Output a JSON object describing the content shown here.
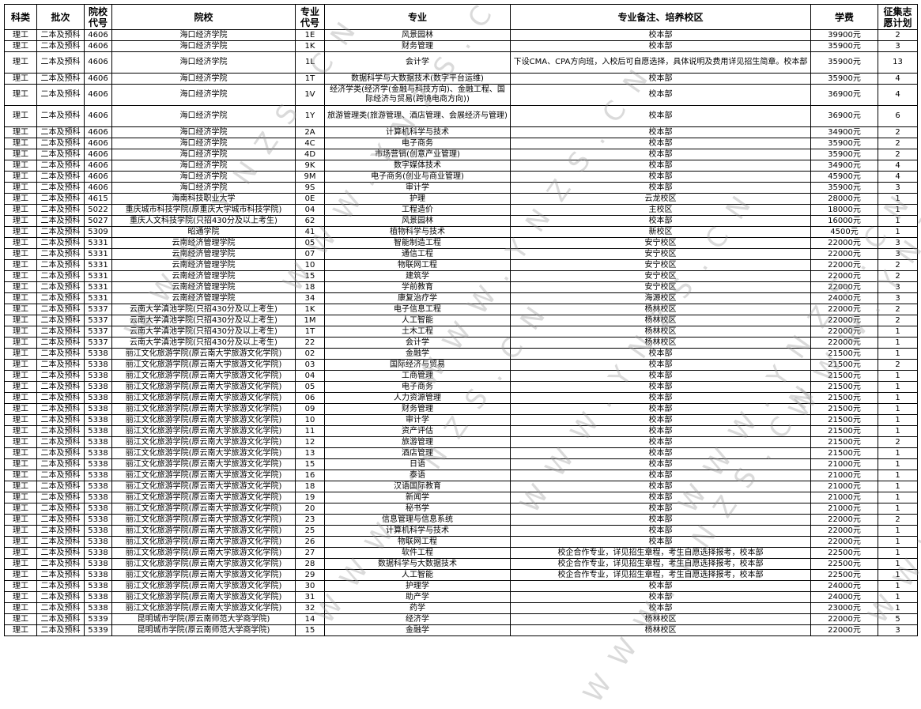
{
  "watermark": "WWW.YNZS.CN",
  "headers": [
    "科类",
    "批次",
    "院校代号",
    "院校",
    "专业代号",
    "专业",
    "专业备注、培养校区",
    "学费",
    "征集志愿计划"
  ],
  "rows": [
    [
      "理工",
      "二本及预科",
      "4606",
      "海口经济学院",
      "1E",
      "风景园林",
      "校本部",
      "39900元",
      "2"
    ],
    [
      "理工",
      "二本及预科",
      "4606",
      "海口经济学院",
      "1K",
      "财务管理",
      "校本部",
      "35900元",
      "3"
    ],
    [
      "理工",
      "二本及预科",
      "4606",
      "海口经济学院",
      "1L",
      "会计学",
      "下设CMA、CPA方向班，入校后可自愿选择，具体说明及费用详见招生简章。校本部",
      "35900元",
      "13"
    ],
    [
      "理工",
      "二本及预科",
      "4606",
      "海口经济学院",
      "1T",
      "数据科学与大数据技术(数字平台运维)",
      "校本部",
      "35900元",
      "4"
    ],
    [
      "理工",
      "二本及预科",
      "4606",
      "海口经济学院",
      "1V",
      "经济学类(经济学(金融与科技方向)、金融工程、国际经济与贸易(跨境电商方向))",
      "校本部",
      "36900元",
      "4"
    ],
    [
      "理工",
      "二本及预科",
      "4606",
      "海口经济学院",
      "1Y",
      "旅游管理类(旅游管理、酒店管理、会展经济与管理)",
      "校本部",
      "36900元",
      "6"
    ],
    [
      "理工",
      "二本及预科",
      "4606",
      "海口经济学院",
      "2A",
      "计算机科学与技术",
      "校本部",
      "34900元",
      "2"
    ],
    [
      "理工",
      "二本及预科",
      "4606",
      "海口经济学院",
      "4C",
      "电子商务",
      "校本部",
      "35900元",
      "2"
    ],
    [
      "理工",
      "二本及预科",
      "4606",
      "海口经济学院",
      "4D",
      "市场营销(创意产业管理)",
      "校本部",
      "35900元",
      "2"
    ],
    [
      "理工",
      "二本及预科",
      "4606",
      "海口经济学院",
      "9K",
      "数字媒体技术",
      "校本部",
      "34900元",
      "4"
    ],
    [
      "理工",
      "二本及预科",
      "4606",
      "海口经济学院",
      "9M",
      "电子商务(创业与商业管理)",
      "校本部",
      "45900元",
      "4"
    ],
    [
      "理工",
      "二本及预科",
      "4606",
      "海口经济学院",
      "9S",
      "审计学",
      "校本部",
      "35900元",
      "3"
    ],
    [
      "理工",
      "二本及预科",
      "4615",
      "海南科技职业大学",
      "0E",
      "护理",
      "云龙校区",
      "28000元",
      "1"
    ],
    [
      "理工",
      "二本及预科",
      "5022",
      "重庆城市科技学院(原重庆大学城市科技学院)",
      "04",
      "工程造价",
      "主校区",
      "18000元",
      "1"
    ],
    [
      "理工",
      "二本及预科",
      "5027",
      "重庆人文科技学院(只招430分及以上考生)",
      "62",
      "风景园林",
      "校本部",
      "16000元",
      "1"
    ],
    [
      "理工",
      "二本及预科",
      "5309",
      "昭通学院",
      "41",
      "植物科学与技术",
      "新校区",
      "4500元",
      "1"
    ],
    [
      "理工",
      "二本及预科",
      "5331",
      "云南经济管理学院",
      "05",
      "智能制造工程",
      "安宁校区",
      "22000元",
      "3"
    ],
    [
      "理工",
      "二本及预科",
      "5331",
      "云南经济管理学院",
      "07",
      "通信工程",
      "安宁校区",
      "22000元",
      "3"
    ],
    [
      "理工",
      "二本及预科",
      "5331",
      "云南经济管理学院",
      "10",
      "物联网工程",
      "安宁校区",
      "22000元",
      "2"
    ],
    [
      "理工",
      "二本及预科",
      "5331",
      "云南经济管理学院",
      "15",
      "建筑学",
      "安宁校区",
      "22000元",
      "2"
    ],
    [
      "理工",
      "二本及预科",
      "5331",
      "云南经济管理学院",
      "18",
      "学前教育",
      "安宁校区",
      "22000元",
      "3"
    ],
    [
      "理工",
      "二本及预科",
      "5331",
      "云南经济管理学院",
      "34",
      "康复治疗学",
      "海源校区",
      "24000元",
      "3"
    ],
    [
      "理工",
      "二本及预科",
      "5337",
      "云南大学滇池学院(只招430分及以上考生)",
      "1K",
      "电子信息工程",
      "杨林校区",
      "22000元",
      "2"
    ],
    [
      "理工",
      "二本及预科",
      "5337",
      "云南大学滇池学院(只招430分及以上考生)",
      "1M",
      "人工智能",
      "杨林校区",
      "22000元",
      "2"
    ],
    [
      "理工",
      "二本及预科",
      "5337",
      "云南大学滇池学院(只招430分及以上考生)",
      "1T",
      "土木工程",
      "杨林校区",
      "22000元",
      "1"
    ],
    [
      "理工",
      "二本及预科",
      "5337",
      "云南大学滇池学院(只招430分及以上考生)",
      "22",
      "会计学",
      "杨林校区",
      "22000元",
      "1"
    ],
    [
      "理工",
      "二本及预科",
      "5338",
      "丽江文化旅游学院(原云南大学旅游文化学院)",
      "02",
      "金融学",
      "校本部",
      "21500元",
      "1"
    ],
    [
      "理工",
      "二本及预科",
      "5338",
      "丽江文化旅游学院(原云南大学旅游文化学院)",
      "03",
      "国际经济与贸易",
      "校本部",
      "21500元",
      "2"
    ],
    [
      "理工",
      "二本及预科",
      "5338",
      "丽江文化旅游学院(原云南大学旅游文化学院)",
      "04",
      "工商管理",
      "校本部",
      "21500元",
      "1"
    ],
    [
      "理工",
      "二本及预科",
      "5338",
      "丽江文化旅游学院(原云南大学旅游文化学院)",
      "05",
      "电子商务",
      "校本部",
      "21500元",
      "1"
    ],
    [
      "理工",
      "二本及预科",
      "5338",
      "丽江文化旅游学院(原云南大学旅游文化学院)",
      "06",
      "人力资源管理",
      "校本部",
      "21500元",
      "1"
    ],
    [
      "理工",
      "二本及预科",
      "5338",
      "丽江文化旅游学院(原云南大学旅游文化学院)",
      "09",
      "财务管理",
      "校本部",
      "21500元",
      "1"
    ],
    [
      "理工",
      "二本及预科",
      "5338",
      "丽江文化旅游学院(原云南大学旅游文化学院)",
      "10",
      "审计学",
      "校本部",
      "21500元",
      "1"
    ],
    [
      "理工",
      "二本及预科",
      "5338",
      "丽江文化旅游学院(原云南大学旅游文化学院)",
      "11",
      "资产评估",
      "校本部",
      "21500元",
      "1"
    ],
    [
      "理工",
      "二本及预科",
      "5338",
      "丽江文化旅游学院(原云南大学旅游文化学院)",
      "12",
      "旅游管理",
      "校本部",
      "21500元",
      "2"
    ],
    [
      "理工",
      "二本及预科",
      "5338",
      "丽江文化旅游学院(原云南大学旅游文化学院)",
      "13",
      "酒店管理",
      "校本部",
      "21500元",
      "1"
    ],
    [
      "理工",
      "二本及预科",
      "5338",
      "丽江文化旅游学院(原云南大学旅游文化学院)",
      "15",
      "日语",
      "校本部",
      "21000元",
      "1"
    ],
    [
      "理工",
      "二本及预科",
      "5338",
      "丽江文化旅游学院(原云南大学旅游文化学院)",
      "16",
      "泰语",
      "校本部",
      "21000元",
      "1"
    ],
    [
      "理工",
      "二本及预科",
      "5338",
      "丽江文化旅游学院(原云南大学旅游文化学院)",
      "18",
      "汉语国际教育",
      "校本部",
      "21000元",
      "1"
    ],
    [
      "理工",
      "二本及预科",
      "5338",
      "丽江文化旅游学院(原云南大学旅游文化学院)",
      "19",
      "新闻学",
      "校本部",
      "21000元",
      "1"
    ],
    [
      "理工",
      "二本及预科",
      "5338",
      "丽江文化旅游学院(原云南大学旅游文化学院)",
      "20",
      "秘书学",
      "校本部",
      "21000元",
      "1"
    ],
    [
      "理工",
      "二本及预科",
      "5338",
      "丽江文化旅游学院(原云南大学旅游文化学院)",
      "23",
      "信息管理与信息系统",
      "校本部",
      "22000元",
      "2"
    ],
    [
      "理工",
      "二本及预科",
      "5338",
      "丽江文化旅游学院(原云南大学旅游文化学院)",
      "25",
      "计算机科学与技术",
      "校本部",
      "22000元",
      "1"
    ],
    [
      "理工",
      "二本及预科",
      "5338",
      "丽江文化旅游学院(原云南大学旅游文化学院)",
      "26",
      "物联网工程",
      "校本部",
      "22000元",
      "1"
    ],
    [
      "理工",
      "二本及预科",
      "5338",
      "丽江文化旅游学院(原云南大学旅游文化学院)",
      "27",
      "软件工程",
      "校企合作专业，详见招生章程，考生自愿选择报考，校本部",
      "22500元",
      "1"
    ],
    [
      "理工",
      "二本及预科",
      "5338",
      "丽江文化旅游学院(原云南大学旅游文化学院)",
      "28",
      "数据科学与大数据技术",
      "校企合作专业，详见招生章程，考生自愿选择报考，校本部",
      "22500元",
      "1"
    ],
    [
      "理工",
      "二本及预科",
      "5338",
      "丽江文化旅游学院(原云南大学旅游文化学院)",
      "29",
      "人工智能",
      "校企合作专业，详见招生章程，考生自愿选择报考，校本部",
      "22500元",
      "1"
    ],
    [
      "理工",
      "二本及预科",
      "5338",
      "丽江文化旅游学院(原云南大学旅游文化学院)",
      "30",
      "护理学",
      "校本部",
      "24000元",
      "1"
    ],
    [
      "理工",
      "二本及预科",
      "5338",
      "丽江文化旅游学院(原云南大学旅游文化学院)",
      "31",
      "助产学",
      "校本部",
      "24000元",
      "1"
    ],
    [
      "理工",
      "二本及预科",
      "5338",
      "丽江文化旅游学院(原云南大学旅游文化学院)",
      "32",
      "药学",
      "校本部",
      "23000元",
      "1"
    ],
    [
      "理工",
      "二本及预科",
      "5339",
      "昆明城市学院(原云南师范大学商学院)",
      "14",
      "经济学",
      "杨林校区",
      "22000元",
      "5"
    ],
    [
      "理工",
      "二本及预科",
      "5339",
      "昆明城市学院(原云南师范大学商学院)",
      "15",
      "金融学",
      "杨林校区",
      "22000元",
      "3"
    ]
  ]
}
